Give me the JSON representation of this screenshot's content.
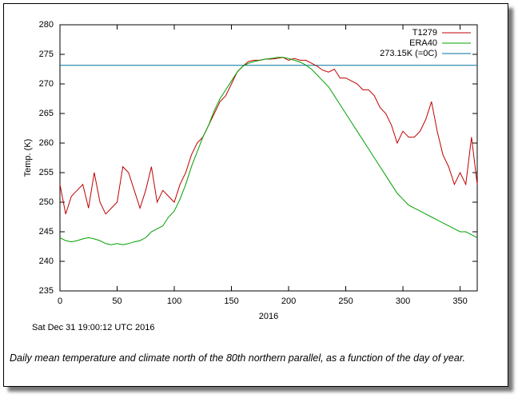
{
  "chart_data": {
    "type": "line",
    "ylabel": "Temp. (K)",
    "xlabel": "2016",
    "xlim": [
      0,
      365
    ],
    "ylim": [
      235,
      280
    ],
    "xticks": [
      0,
      50,
      100,
      150,
      200,
      250,
      300,
      350
    ],
    "yticks": [
      235,
      240,
      245,
      250,
      255,
      260,
      265,
      270,
      275,
      280
    ],
    "legend": "upper right",
    "x": [
      0,
      5,
      10,
      15,
      20,
      25,
      30,
      35,
      40,
      45,
      50,
      55,
      60,
      65,
      70,
      75,
      80,
      85,
      90,
      95,
      100,
      105,
      110,
      115,
      120,
      125,
      130,
      135,
      140,
      145,
      150,
      155,
      160,
      165,
      170,
      175,
      180,
      185,
      190,
      195,
      200,
      205,
      210,
      215,
      220,
      225,
      230,
      235,
      240,
      245,
      250,
      255,
      260,
      265,
      270,
      275,
      280,
      285,
      290,
      295,
      300,
      305,
      310,
      315,
      320,
      325,
      330,
      335,
      340,
      345,
      350,
      355,
      360,
      365
    ],
    "series": [
      {
        "name": "T1279",
        "color": "#c00000",
        "values": [
          253,
          248,
          251,
          252,
          253,
          249,
          255,
          250,
          248,
          249,
          250,
          256,
          255,
          252,
          249,
          252,
          256,
          250,
          252,
          251,
          250,
          253,
          255,
          258,
          260,
          261,
          263,
          265,
          267,
          268,
          270,
          272,
          273,
          273.8,
          274,
          274,
          274.2,
          274.2,
          274.3,
          274.5,
          274,
          274.3,
          274,
          274,
          273.5,
          273,
          272.3,
          272,
          272.5,
          271,
          271,
          270.5,
          270,
          269,
          269,
          268,
          266,
          265,
          263,
          260,
          262,
          261,
          261,
          262,
          264,
          267,
          262,
          258,
          256,
          253,
          255,
          253,
          261,
          253
        ]
      },
      {
        "name": "ERA40",
        "color": "#00a000",
        "values": [
          244,
          243.5,
          243.3,
          243.5,
          243.8,
          244,
          243.8,
          243.5,
          243,
          242.8,
          243,
          242.8,
          243,
          243.3,
          243.5,
          244,
          245,
          245.5,
          246,
          247.5,
          248.5,
          250.5,
          253,
          256,
          258.5,
          261,
          263,
          265.5,
          267.5,
          269,
          270.5,
          272,
          273,
          273.5,
          273.8,
          274,
          274.2,
          274.3,
          274.5,
          274.5,
          274.3,
          274,
          273.7,
          273.2,
          272.5,
          271.5,
          270.5,
          269.5,
          268,
          266.5,
          265,
          263.5,
          262,
          260.5,
          259,
          257.5,
          256,
          254.5,
          253,
          251.5,
          250.5,
          249.5,
          249,
          248.5,
          248,
          247.5,
          247,
          246.5,
          246,
          245.5,
          245,
          245,
          244.5,
          244
        ]
      }
    ],
    "hline": {
      "name": "273.15K (=0C)",
      "value": 273.15,
      "color": "#0070a0"
    }
  },
  "timestamp": "Sat Dec 31 19:00:12 UTC 2016",
  "caption": "Daily mean temperature and climate north of the 80th northern parallel, as a function of the day of year."
}
